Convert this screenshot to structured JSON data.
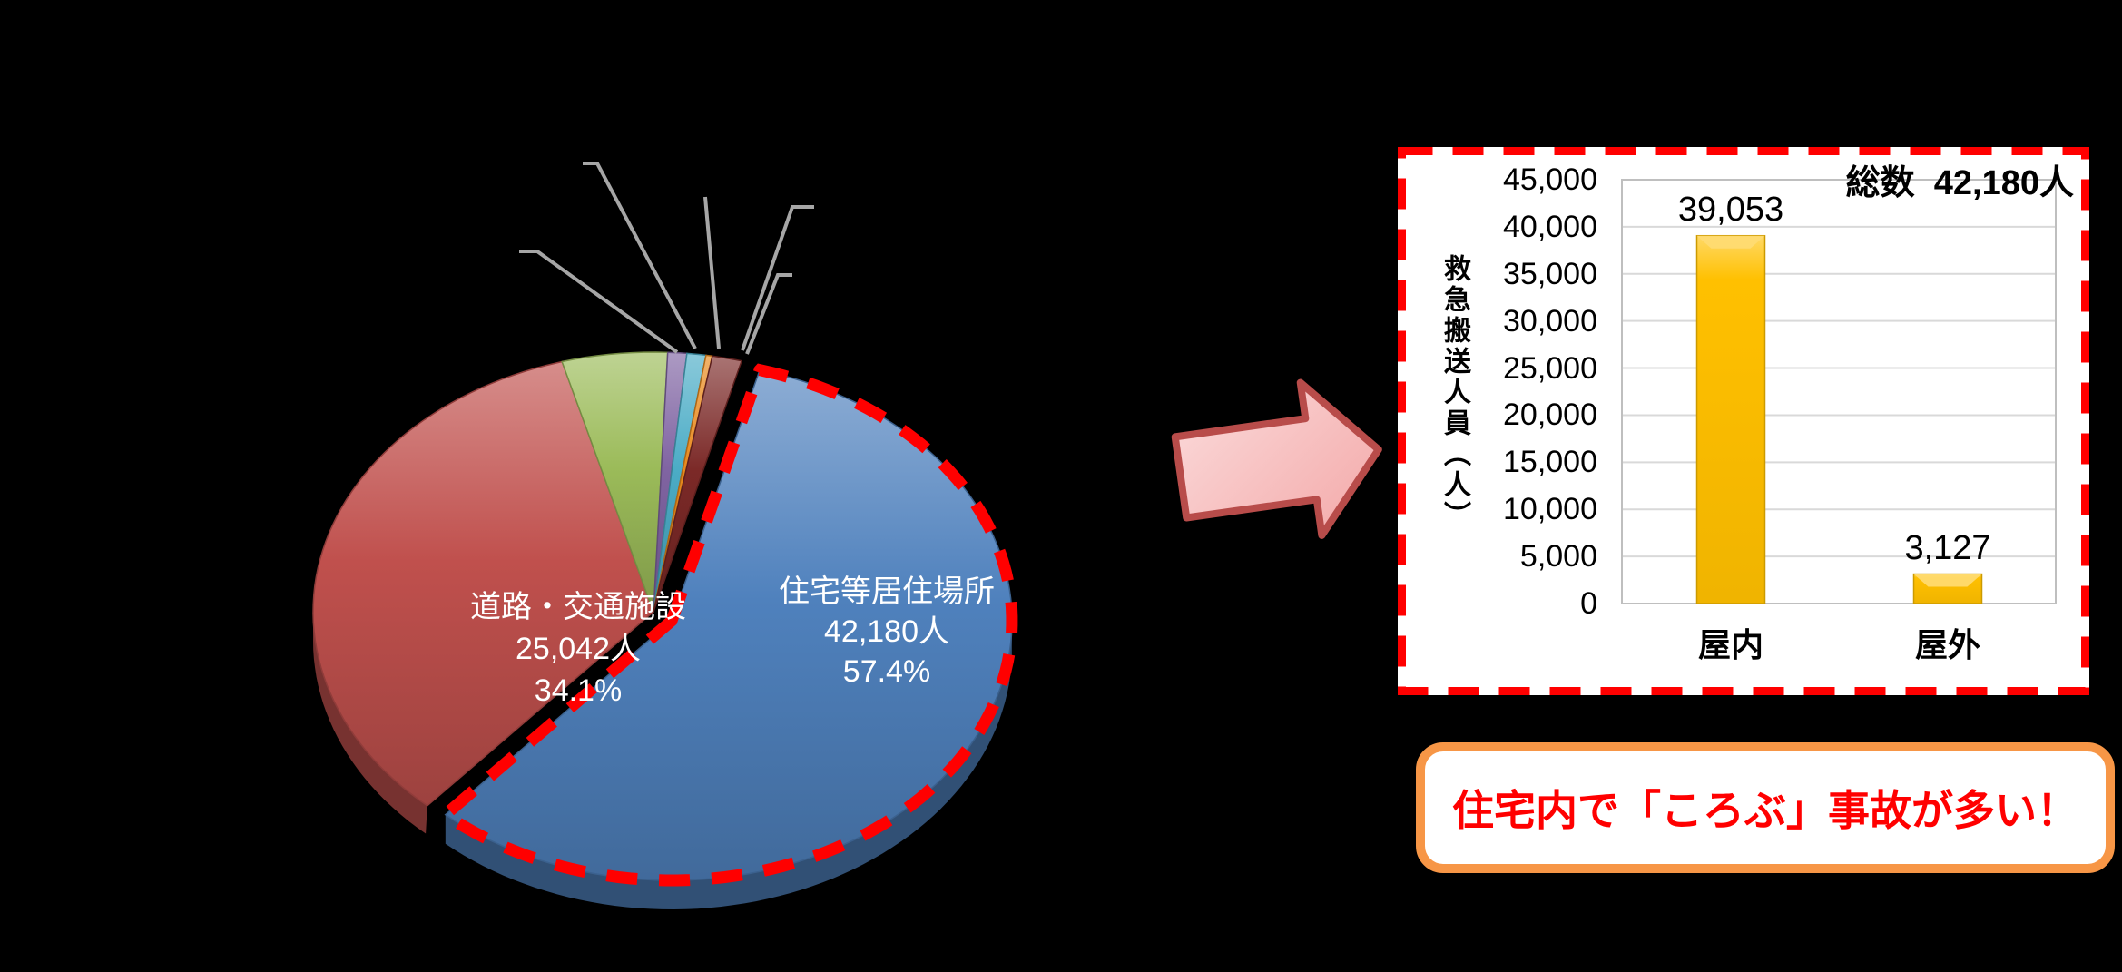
{
  "page": {
    "background_color": "#000000"
  },
  "chart_data": [
    {
      "type": "pie",
      "style": "3d-exploded",
      "highlight_outline_color": "#FF0000",
      "leader_line_color": "#A6A6A6",
      "slices": [
        {
          "label": "住宅等居住場所",
          "value_label": "42,180人",
          "percent_label": "57.4%",
          "value": 42180,
          "percent": 57.4,
          "color": "#4F81BD",
          "highlighted": true
        },
        {
          "label": "道路・交通施設",
          "value_label": "25,042人",
          "percent_label": "34.1%",
          "value": 25042,
          "percent": 34.1,
          "color": "#C0504D",
          "highlighted": false
        },
        {
          "label": "",
          "value_label": "",
          "percent_label": "",
          "percent": 5.0,
          "color": "#9BBB59",
          "highlighted": false
        },
        {
          "label": "",
          "value_label": "",
          "percent_label": "",
          "percent": 0.9,
          "color": "#8064A2",
          "highlighted": false
        },
        {
          "label": "",
          "value_label": "",
          "percent_label": "",
          "percent": 0.9,
          "color": "#4BACC6",
          "highlighted": false
        },
        {
          "label": "",
          "value_label": "",
          "percent_label": "",
          "percent": 0.3,
          "color": "#E8891C",
          "highlighted": false
        },
        {
          "label": "",
          "value_label": "",
          "percent_label": "",
          "percent": 1.4,
          "color": "#7B2927",
          "highlighted": false
        }
      ]
    },
    {
      "type": "bar",
      "categories": [
        "屋内",
        "屋外"
      ],
      "values": [
        39053,
        3127
      ],
      "value_labels": [
        "39,053",
        "3,127"
      ],
      "total_label": "総数  42,180人",
      "y_axis_title": "救急搬送人員（人）",
      "y_ticks": [
        "45,000",
        "40,000",
        "35,000",
        "30,000",
        "25,000",
        "20,000",
        "15,000",
        "10,000",
        "5,000",
        "0"
      ],
      "ylim": [
        0,
        45000
      ],
      "bar_color": "#FFC000",
      "grid_color": "#D9D9D9",
      "panel_border_color": "#FF0000"
    }
  ],
  "arrow": {
    "fill": "#F6BDBD",
    "stroke": "#B84C4A"
  },
  "callout": {
    "text": "住宅内で「ころぶ」事故が多い！",
    "text_color": "#FF0000",
    "border_color": "#F79646"
  }
}
